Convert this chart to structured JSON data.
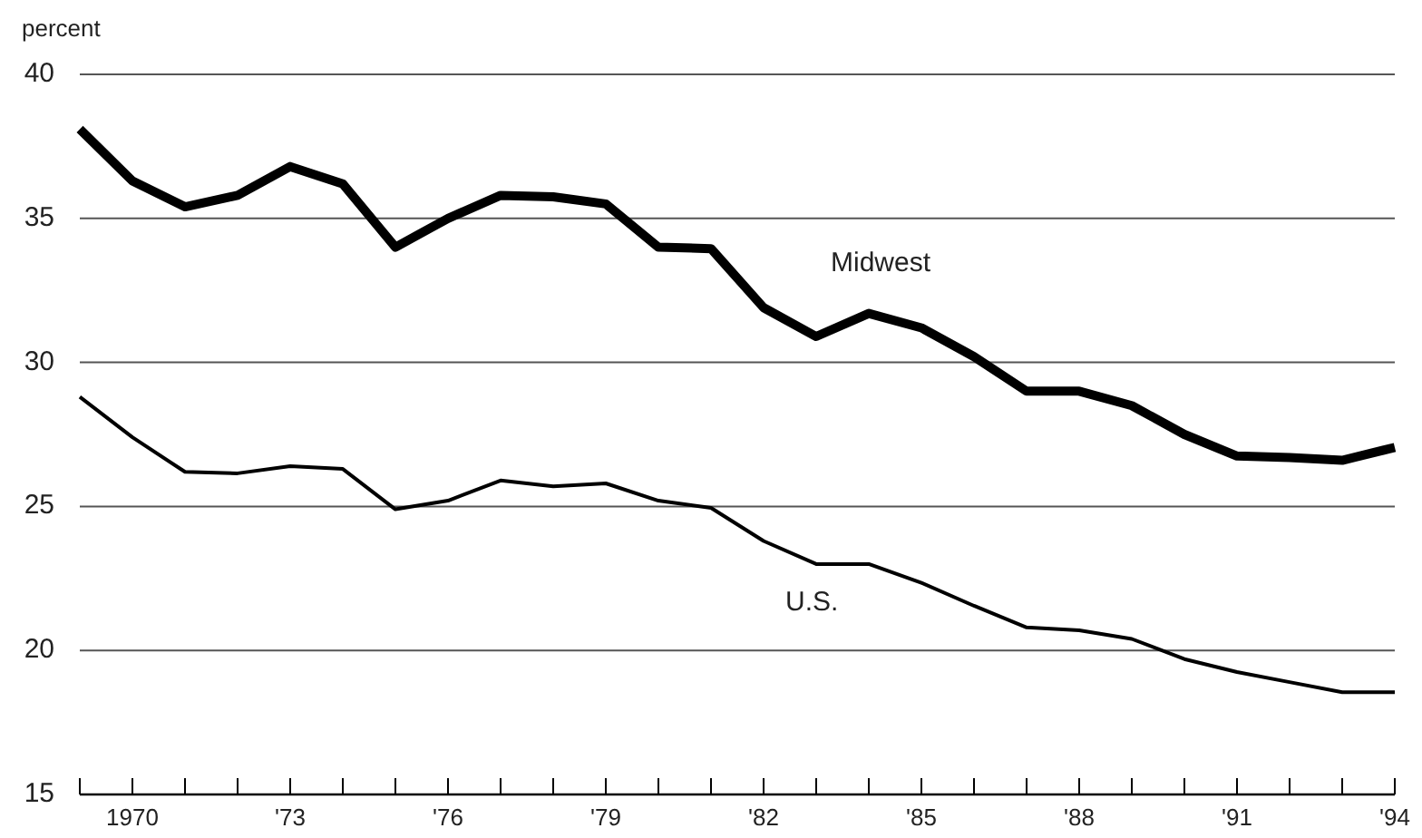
{
  "chart_data": {
    "type": "line",
    "ylabel": "percent",
    "x": [
      1969,
      1970,
      1971,
      1972,
      1973,
      1974,
      1975,
      1976,
      1977,
      1978,
      1979,
      1980,
      1981,
      1982,
      1983,
      1984,
      1985,
      1986,
      1987,
      1988,
      1989,
      1990,
      1991,
      1992,
      1993,
      1994
    ],
    "series": [
      {
        "name": "Midwest",
        "color": "#000000",
        "values": [
          38.1,
          36.3,
          35.4,
          35.8,
          36.8,
          36.2,
          34.0,
          35.0,
          35.8,
          35.75,
          35.5,
          34.0,
          33.95,
          31.9,
          30.9,
          31.7,
          31.2,
          30.2,
          29.0,
          29.0,
          28.5,
          27.5,
          26.75,
          26.7,
          26.6,
          27.05
        ]
      },
      {
        "name": "U.S.",
        "color": "#000000",
        "values": [
          28.8,
          27.4,
          26.2,
          26.15,
          26.4,
          26.3,
          24.9,
          25.2,
          25.9,
          25.7,
          25.8,
          25.2,
          24.95,
          23.8,
          23.0,
          23.0,
          22.35,
          21.55,
          20.8,
          20.7,
          20.4,
          19.7,
          19.25,
          18.9,
          18.55,
          18.55
        ]
      }
    ],
    "xlim": [
      1969,
      1994
    ],
    "xticks": [
      {
        "value": 1969,
        "label": null
      },
      {
        "value": 1970,
        "label": "1970"
      },
      {
        "value": 1971,
        "label": null
      },
      {
        "value": 1972,
        "label": null
      },
      {
        "value": 1973,
        "label": "'73"
      },
      {
        "value": 1974,
        "label": null
      },
      {
        "value": 1975,
        "label": null
      },
      {
        "value": 1976,
        "label": "'76"
      },
      {
        "value": 1977,
        "label": null
      },
      {
        "value": 1978,
        "label": null
      },
      {
        "value": 1979,
        "label": "'79"
      },
      {
        "value": 1980,
        "label": null
      },
      {
        "value": 1981,
        "label": null
      },
      {
        "value": 1982,
        "label": "'82"
      },
      {
        "value": 1983,
        "label": null
      },
      {
        "value": 1984,
        "label": null
      },
      {
        "value": 1985,
        "label": "'85"
      },
      {
        "value": 1986,
        "label": null
      },
      {
        "value": 1987,
        "label": null
      },
      {
        "value": 1988,
        "label": "'88"
      },
      {
        "value": 1989,
        "label": null
      },
      {
        "value": 1990,
        "label": null
      },
      {
        "value": 1991,
        "label": "'91"
      },
      {
        "value": 1992,
        "label": null
      },
      {
        "value": 1993,
        "label": null
      },
      {
        "value": 1994,
        "label": "'94"
      }
    ],
    "ylim": [
      15,
      40
    ],
    "yticks": [
      15,
      20,
      25,
      30,
      35,
      40
    ],
    "grid": "y",
    "marker": "none",
    "line_style": "solid"
  }
}
